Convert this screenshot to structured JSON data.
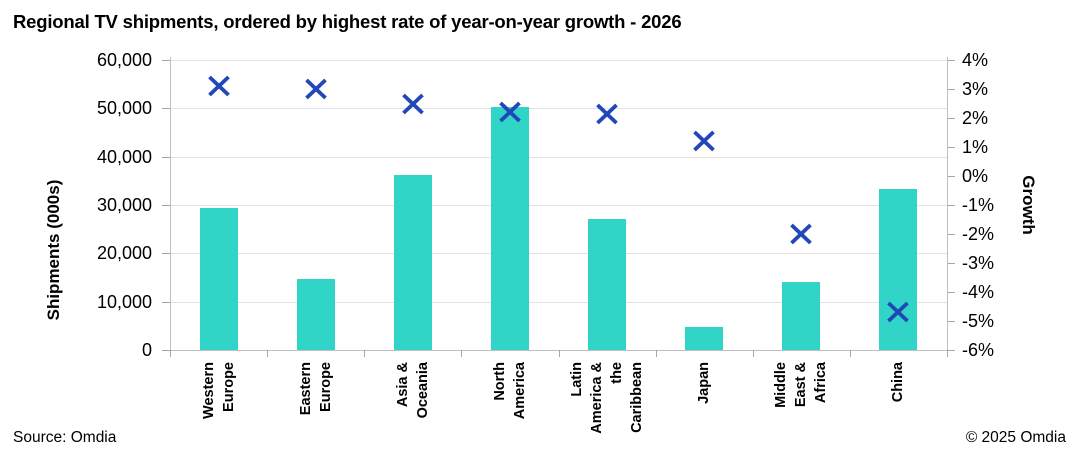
{
  "chart_data": {
    "type": "combo",
    "title": "Regional TV shipments, ordered by highest rate of year-on-year growth - 2026",
    "categories": [
      "Western Europe",
      "Eastern Europe",
      "Asia & Oceania",
      "North America",
      "Latin America & the Caribbean",
      "Japan",
      "Middle East & Africa",
      "China"
    ],
    "category_label_lines": [
      [
        "Western",
        "Europe"
      ],
      [
        "Eastern",
        "Europe"
      ],
      [
        "Asia &",
        "Oceania"
      ],
      [
        "North",
        "America"
      ],
      [
        "Latin",
        "America &",
        "the",
        "Caribbean"
      ],
      [
        "Japan"
      ],
      [
        "Middle",
        "East &",
        "Africa"
      ],
      [
        "China"
      ]
    ],
    "series": [
      {
        "name": "Shipments (000s)",
        "type": "bar",
        "axis": "left",
        "values": [
          29300,
          14700,
          36200,
          50200,
          27200,
          4700,
          14100,
          33400
        ]
      },
      {
        "name": "Growth",
        "type": "scatter",
        "marker": "x",
        "axis": "right",
        "values": [
          3.1,
          3.0,
          2.5,
          2.2,
          2.15,
          1.2,
          -2.0,
          -4.7
        ]
      }
    ],
    "left_axis": {
      "label": "Shipments (000s)",
      "min": 0,
      "max": 60000,
      "step": 10000,
      "tick_labels": [
        "60,000",
        "50,000",
        "40,000",
        "30,000",
        "20,000",
        "10,000",
        "0"
      ]
    },
    "right_axis": {
      "label": "Growth",
      "min": -6,
      "max": 4,
      "step": 1,
      "unit": "%",
      "tick_labels": [
        "4%",
        "3%",
        "2%",
        "1%",
        "0%",
        "-1%",
        "-2%",
        "-3%",
        "-4%",
        "-5%",
        "-6%"
      ]
    },
    "grid": "horizontal",
    "legend": "none",
    "colors": {
      "bar": "#30d5c7",
      "marker": "#2147b8",
      "gridline": "#e2e2e2",
      "axis": "#bfbfbf",
      "tick": "#a6a6a6",
      "text": "#000000"
    }
  },
  "footer": {
    "source": "Source: Omdia",
    "copyright": "© 2025 Omdia"
  }
}
